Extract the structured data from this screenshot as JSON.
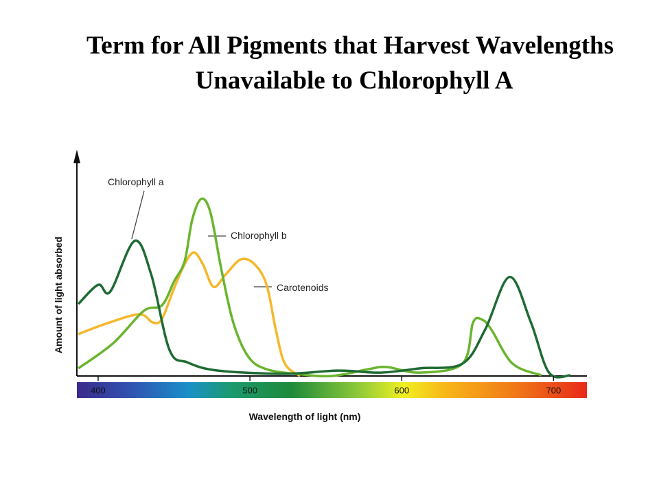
{
  "chart_data": {
    "type": "line",
    "title_lines": [
      "Term for All Pigments that Harvest Wavelengths",
      "Unavailable to Chlorophyll A"
    ],
    "xlabel": "Wavelength of light (nm)",
    "ylabel": "Amount of light absorbed",
    "xlim": [
      386,
      722
    ],
    "xticks": [
      400,
      500,
      600,
      700
    ],
    "ylim": [
      0,
      100
    ],
    "series": [
      {
        "name": "Chlorophyll a",
        "color": "#1e6b34",
        "x": [
          387,
          400,
          408,
          424,
          435,
          447,
          459,
          479,
          523,
          558,
          586,
          612,
          640,
          655,
          671,
          685,
          697,
          711
        ],
        "values": [
          32,
          40.5,
          37.5,
          60,
          45,
          11.6,
          6,
          2.4,
          1,
          2.4,
          1.5,
          3.4,
          5.5,
          20.7,
          44,
          24,
          1.5,
          0.3
        ]
      },
      {
        "name": "Chlorophyll b",
        "color": "#6ab42e",
        "x": [
          387,
          410,
          430,
          442,
          450,
          457,
          462,
          468,
          474,
          481,
          489,
          499,
          511,
          531,
          554,
          578,
          590,
          612,
          640,
          647,
          653,
          659,
          673,
          692
        ],
        "values": [
          3.4,
          14.6,
          28.9,
          31.4,
          42,
          51,
          69.5,
          78.7,
          72.6,
          48,
          23.8,
          8.5,
          3,
          0.9,
          0,
          3,
          4,
          1.5,
          5.5,
          23.8,
          25,
          20.7,
          5.5,
          0.3
        ]
      },
      {
        "name": "Carotenoids",
        "color": "#f5b82a",
        "x": [
          387,
          405,
          427,
          436,
          442,
          450,
          457,
          463,
          469,
          476,
          484,
          494,
          503,
          511,
          517,
          523,
          533
        ],
        "values": [
          18.6,
          23.2,
          27.4,
          23.8,
          25.3,
          39,
          49.7,
          54.9,
          49.7,
          39.6,
          45.1,
          51.8,
          49.7,
          40.5,
          20.7,
          5.5,
          0
        ]
      }
    ]
  }
}
